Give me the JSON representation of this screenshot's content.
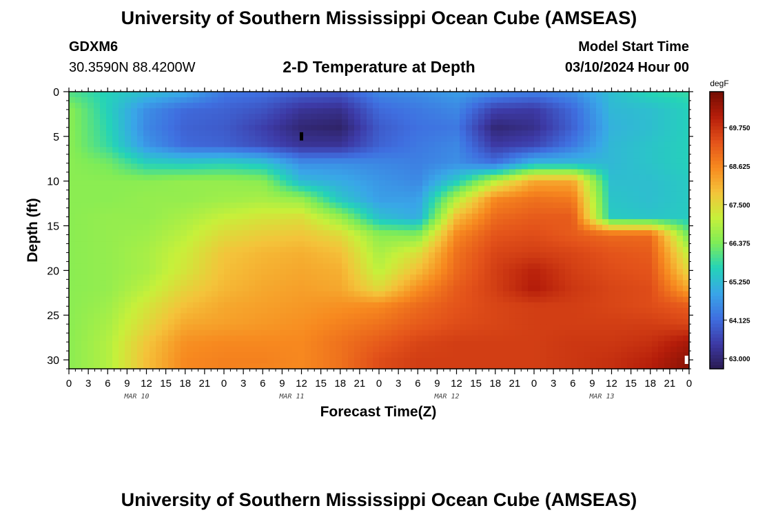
{
  "header": {
    "title": "University of Southern Mississippi Ocean Cube (AMSEAS)",
    "station_id": "GDXM6",
    "location": "30.3590N  88.4200W",
    "chart_title": "2-D Temperature at Depth",
    "model_label": "Model Start Time",
    "model_time": "03/10/2024 Hour 00"
  },
  "footer": {
    "title": "University of Southern Mississippi Ocean Cube (AMSEAS)"
  },
  "chart_data": {
    "type": "heatmap",
    "title": "2-D Temperature at Depth",
    "xlabel": "Forecast Time(Z)",
    "ylabel": "Depth (ft)",
    "x_ticks": [
      "0",
      "3",
      "6",
      "9",
      "12",
      "15",
      "18",
      "21",
      "0",
      "3",
      "6",
      "9",
      "12",
      "15",
      "18",
      "21",
      "0",
      "3",
      "6",
      "9",
      "12",
      "15",
      "18",
      "21",
      "0",
      "3",
      "6",
      "9",
      "12",
      "15",
      "18",
      "21",
      "0"
    ],
    "x_range_hours": [
      0,
      96
    ],
    "date_labels": [
      {
        "label": "MAR 10",
        "hour": 10.5
      },
      {
        "label": "MAR 11",
        "hour": 34.5
      },
      {
        "label": "MAR 12",
        "hour": 58.5
      },
      {
        "label": "MAR 13",
        "hour": 82.5
      }
    ],
    "y_ticks": [
      "0",
      "5",
      "10",
      "15",
      "20",
      "25",
      "30"
    ],
    "y_range_ft": [
      0,
      31
    ],
    "y_inverted": true,
    "colorbar": {
      "unit": "degF",
      "tick_labels": [
        "69.750",
        "68.625",
        "67.500",
        "66.375",
        "65.250",
        "64.125",
        "63.000"
      ],
      "tick_values": [
        69.75,
        68.625,
        67.5,
        66.375,
        65.25,
        64.125,
        63.0
      ],
      "range": [
        62.7,
        70.8
      ],
      "colors": [
        "#2a1b52",
        "#3d3aa6",
        "#3f6fe0",
        "#39a6e8",
        "#24d3b8",
        "#7fec57",
        "#c7f03a",
        "#f4c33a",
        "#f7891f",
        "#e3521a",
        "#b51d0a",
        "#730d03"
      ]
    },
    "temperature_field": {
      "rows": 17,
      "cols": 17,
      "depth_ft_start": 0,
      "depth_ft_step": 2,
      "hour_start": 0,
      "hour_step": 6,
      "values_degF": [
        [
          66.0,
          65.6,
          65.3,
          65.0,
          64.3,
          64.2,
          64.0,
          63.9,
          64.5,
          64.6,
          64.8,
          64.6,
          64.4,
          64.6,
          65.3,
          65.7,
          65.8
        ],
        [
          66.5,
          65.6,
          64.6,
          64.1,
          64.0,
          63.8,
          63.3,
          63.2,
          64.1,
          64.3,
          64.5,
          63.5,
          63.4,
          64.1,
          65.2,
          65.3,
          65.6
        ],
        [
          66.5,
          65.7,
          64.5,
          64.0,
          63.9,
          63.5,
          63.0,
          62.9,
          63.9,
          64.2,
          64.3,
          63.0,
          63.2,
          64.0,
          65.1,
          65.3,
          65.6
        ],
        [
          66.5,
          65.8,
          64.7,
          64.1,
          64.0,
          63.7,
          63.3,
          63.3,
          64.0,
          64.3,
          64.5,
          63.4,
          63.6,
          64.3,
          65.2,
          65.4,
          65.6
        ],
        [
          66.5,
          66.3,
          65.6,
          65.5,
          65.6,
          65.4,
          64.6,
          64.6,
          64.5,
          64.4,
          64.6,
          64.2,
          65.2,
          65.2,
          65.2,
          65.4,
          65.6
        ],
        [
          66.5,
          66.5,
          66.5,
          66.6,
          66.6,
          66.5,
          65.2,
          65.0,
          64.7,
          64.5,
          65.5,
          67.0,
          68.2,
          68.2,
          65.3,
          65.3,
          65.5
        ],
        [
          66.5,
          66.5,
          66.6,
          66.6,
          66.7,
          66.8,
          66.6,
          65.4,
          64.8,
          64.8,
          66.9,
          68.6,
          68.9,
          68.8,
          65.4,
          65.3,
          65.5
        ],
        [
          66.5,
          66.6,
          66.6,
          66.8,
          67.1,
          67.3,
          67.4,
          66.6,
          65.3,
          65.0,
          67.9,
          69.0,
          69.2,
          69.2,
          65.5,
          65.4,
          65.5
        ],
        [
          66.5,
          66.6,
          66.7,
          67.0,
          67.5,
          67.7,
          67.8,
          67.5,
          66.5,
          66.4,
          68.6,
          69.3,
          69.4,
          69.2,
          69.0,
          69.0,
          66.2
        ],
        [
          66.5,
          66.6,
          66.8,
          67.2,
          67.8,
          68.0,
          68.1,
          67.9,
          66.8,
          67.4,
          68.9,
          69.5,
          69.6,
          69.5,
          69.3,
          69.2,
          67.0
        ],
        [
          66.5,
          66.6,
          66.8,
          67.3,
          67.9,
          68.1,
          68.2,
          68.1,
          67.0,
          67.9,
          69.0,
          69.6,
          70.0,
          69.6,
          69.4,
          69.3,
          67.5
        ],
        [
          66.5,
          66.6,
          67.0,
          67.6,
          68.0,
          68.2,
          68.3,
          68.2,
          67.5,
          68.5,
          69.2,
          69.6,
          70.1,
          69.7,
          69.5,
          69.4,
          68.2
        ],
        [
          66.5,
          66.7,
          67.3,
          67.9,
          68.2,
          68.3,
          68.4,
          68.5,
          68.6,
          69.0,
          69.3,
          69.5,
          69.6,
          69.6,
          69.5,
          69.4,
          69.2
        ],
        [
          66.5,
          66.8,
          67.5,
          68.2,
          68.3,
          68.4,
          68.5,
          68.7,
          68.9,
          69.2,
          69.4,
          69.5,
          69.6,
          69.6,
          69.6,
          69.6,
          69.5
        ],
        [
          66.5,
          66.9,
          67.8,
          68.5,
          68.6,
          68.6,
          68.6,
          68.9,
          69.2,
          69.5,
          69.6,
          69.6,
          69.6,
          69.7,
          69.7,
          69.8,
          70.2
        ],
        [
          66.5,
          66.9,
          67.9,
          68.6,
          68.7,
          68.7,
          68.6,
          68.9,
          69.4,
          69.6,
          69.6,
          69.6,
          69.6,
          69.7,
          69.8,
          70.0,
          70.5
        ],
        [
          66.5,
          66.9,
          67.9,
          68.6,
          68.7,
          68.6,
          68.6,
          68.9,
          69.4,
          69.6,
          69.6,
          69.6,
          69.6,
          69.7,
          69.8,
          70.1,
          70.6
        ]
      ]
    },
    "markers": [
      {
        "label": "min",
        "hour": 36,
        "depth_ft": 5,
        "color": "#000000"
      },
      {
        "label": "max",
        "hour": 95.6,
        "depth_ft": 30,
        "color": "#ffffff"
      }
    ]
  }
}
